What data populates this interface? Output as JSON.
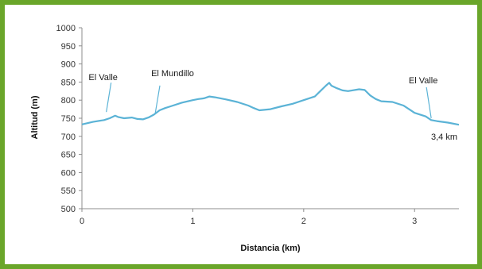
{
  "colors": {
    "border": "#6aa62a",
    "line": "#5bb3d6",
    "axis": "#8c8c8c",
    "text": "#1a1a1a"
  },
  "chart_data": {
    "type": "line",
    "xlabel": "Distancia (km)",
    "ylabel": "Altitud (m)",
    "xlim": [
      0,
      3.4
    ],
    "ylim": [
      500,
      1000
    ],
    "x_ticks": [
      "0",
      "1",
      "2",
      "3"
    ],
    "y_ticks": [
      "500",
      "550",
      "600",
      "650",
      "700",
      "750",
      "800",
      "850",
      "900",
      "950",
      "1000"
    ],
    "grid": false,
    "legend": "none",
    "series": [
      {
        "x": [
          0.0,
          0.1,
          0.2,
          0.25,
          0.3,
          0.33,
          0.38,
          0.45,
          0.5,
          0.55,
          0.6,
          0.65,
          0.7,
          0.75,
          0.8,
          0.9,
          1.0,
          1.05,
          1.1,
          1.15,
          1.2,
          1.3,
          1.4,
          1.5,
          1.55,
          1.6,
          1.7,
          1.8,
          1.9,
          2.0,
          2.1,
          2.15,
          2.2,
          2.23,
          2.25,
          2.3,
          2.35,
          2.4,
          2.5,
          2.55,
          2.6,
          2.65,
          2.7,
          2.8,
          2.9,
          3.0,
          3.1,
          3.15,
          3.2,
          3.3,
          3.4
        ],
        "y": [
          733,
          740,
          745,
          750,
          757,
          753,
          750,
          752,
          748,
          747,
          752,
          760,
          772,
          778,
          783,
          793,
          800,
          803,
          805,
          810,
          808,
          802,
          795,
          785,
          778,
          772,
          775,
          783,
          790,
          800,
          810,
          825,
          840,
          848,
          840,
          833,
          827,
          825,
          830,
          828,
          813,
          803,
          797,
          795,
          785,
          765,
          755,
          745,
          742,
          738,
          732
        ]
      }
    ],
    "annotations": [
      {
        "text": "El Valle",
        "x": 0.22,
        "y": 765
      },
      {
        "text": "El Mundillo",
        "x": 0.66,
        "y": 757
      },
      {
        "text": "El Valle",
        "x": 3.15,
        "y": 748
      },
      {
        "text": "3,4 km",
        "x": 3.4,
        "y": 732
      }
    ]
  }
}
